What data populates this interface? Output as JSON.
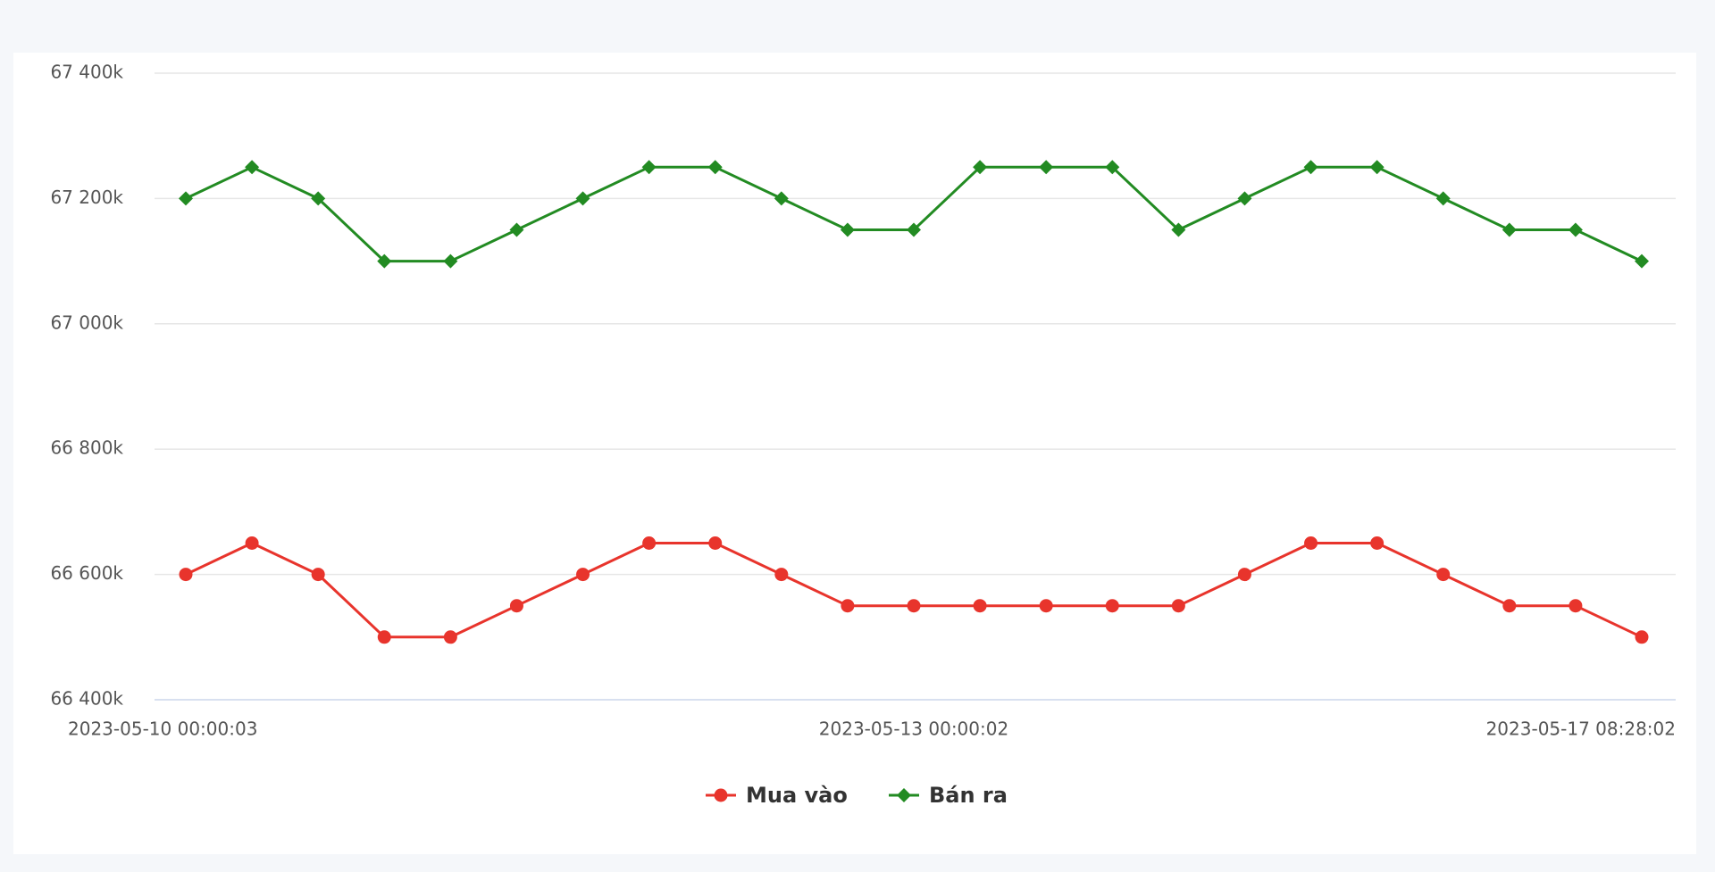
{
  "chart_data": {
    "type": "line",
    "categories": [
      "2023-05-10 00:00:03",
      null,
      null,
      null,
      null,
      null,
      null,
      null,
      null,
      null,
      null,
      "2023-05-13 00:00:02",
      null,
      null,
      null,
      null,
      null,
      null,
      null,
      null,
      null,
      null,
      "2023-05-17 08:28:02"
    ],
    "series": [
      {
        "name": "Mua vào",
        "color": "#e8342c",
        "marker": "circle",
        "values": [
          66600000,
          66650000,
          66600000,
          66500000,
          66500000,
          66550000,
          66600000,
          66650000,
          66650000,
          66600000,
          66550000,
          66550000,
          66550000,
          66550000,
          66550000,
          66550000,
          66600000,
          66650000,
          66650000,
          66600000,
          66550000,
          66550000,
          66500000
        ]
      },
      {
        "name": "Bán ra",
        "color": "#228b22",
        "marker": "diamond",
        "values": [
          67200000,
          67250000,
          67200000,
          67100000,
          67100000,
          67150000,
          67200000,
          67250000,
          67250000,
          67200000,
          67150000,
          67150000,
          67250000,
          67250000,
          67250000,
          67150000,
          67200000,
          67250000,
          67250000,
          67200000,
          67150000,
          67150000,
          67100000
        ]
      }
    ],
    "ylim": [
      66400000,
      67400000
    ],
    "yticks": [
      {
        "value": 66400000,
        "label": "66 400k"
      },
      {
        "value": 66600000,
        "label": "66 600k"
      },
      {
        "value": 66800000,
        "label": "66 800k"
      },
      {
        "value": 67000000,
        "label": "67 000k"
      },
      {
        "value": 67200000,
        "label": "67 200k"
      },
      {
        "value": 67400000,
        "label": "67 400k"
      }
    ],
    "grid": true,
    "legend": "bottom"
  }
}
